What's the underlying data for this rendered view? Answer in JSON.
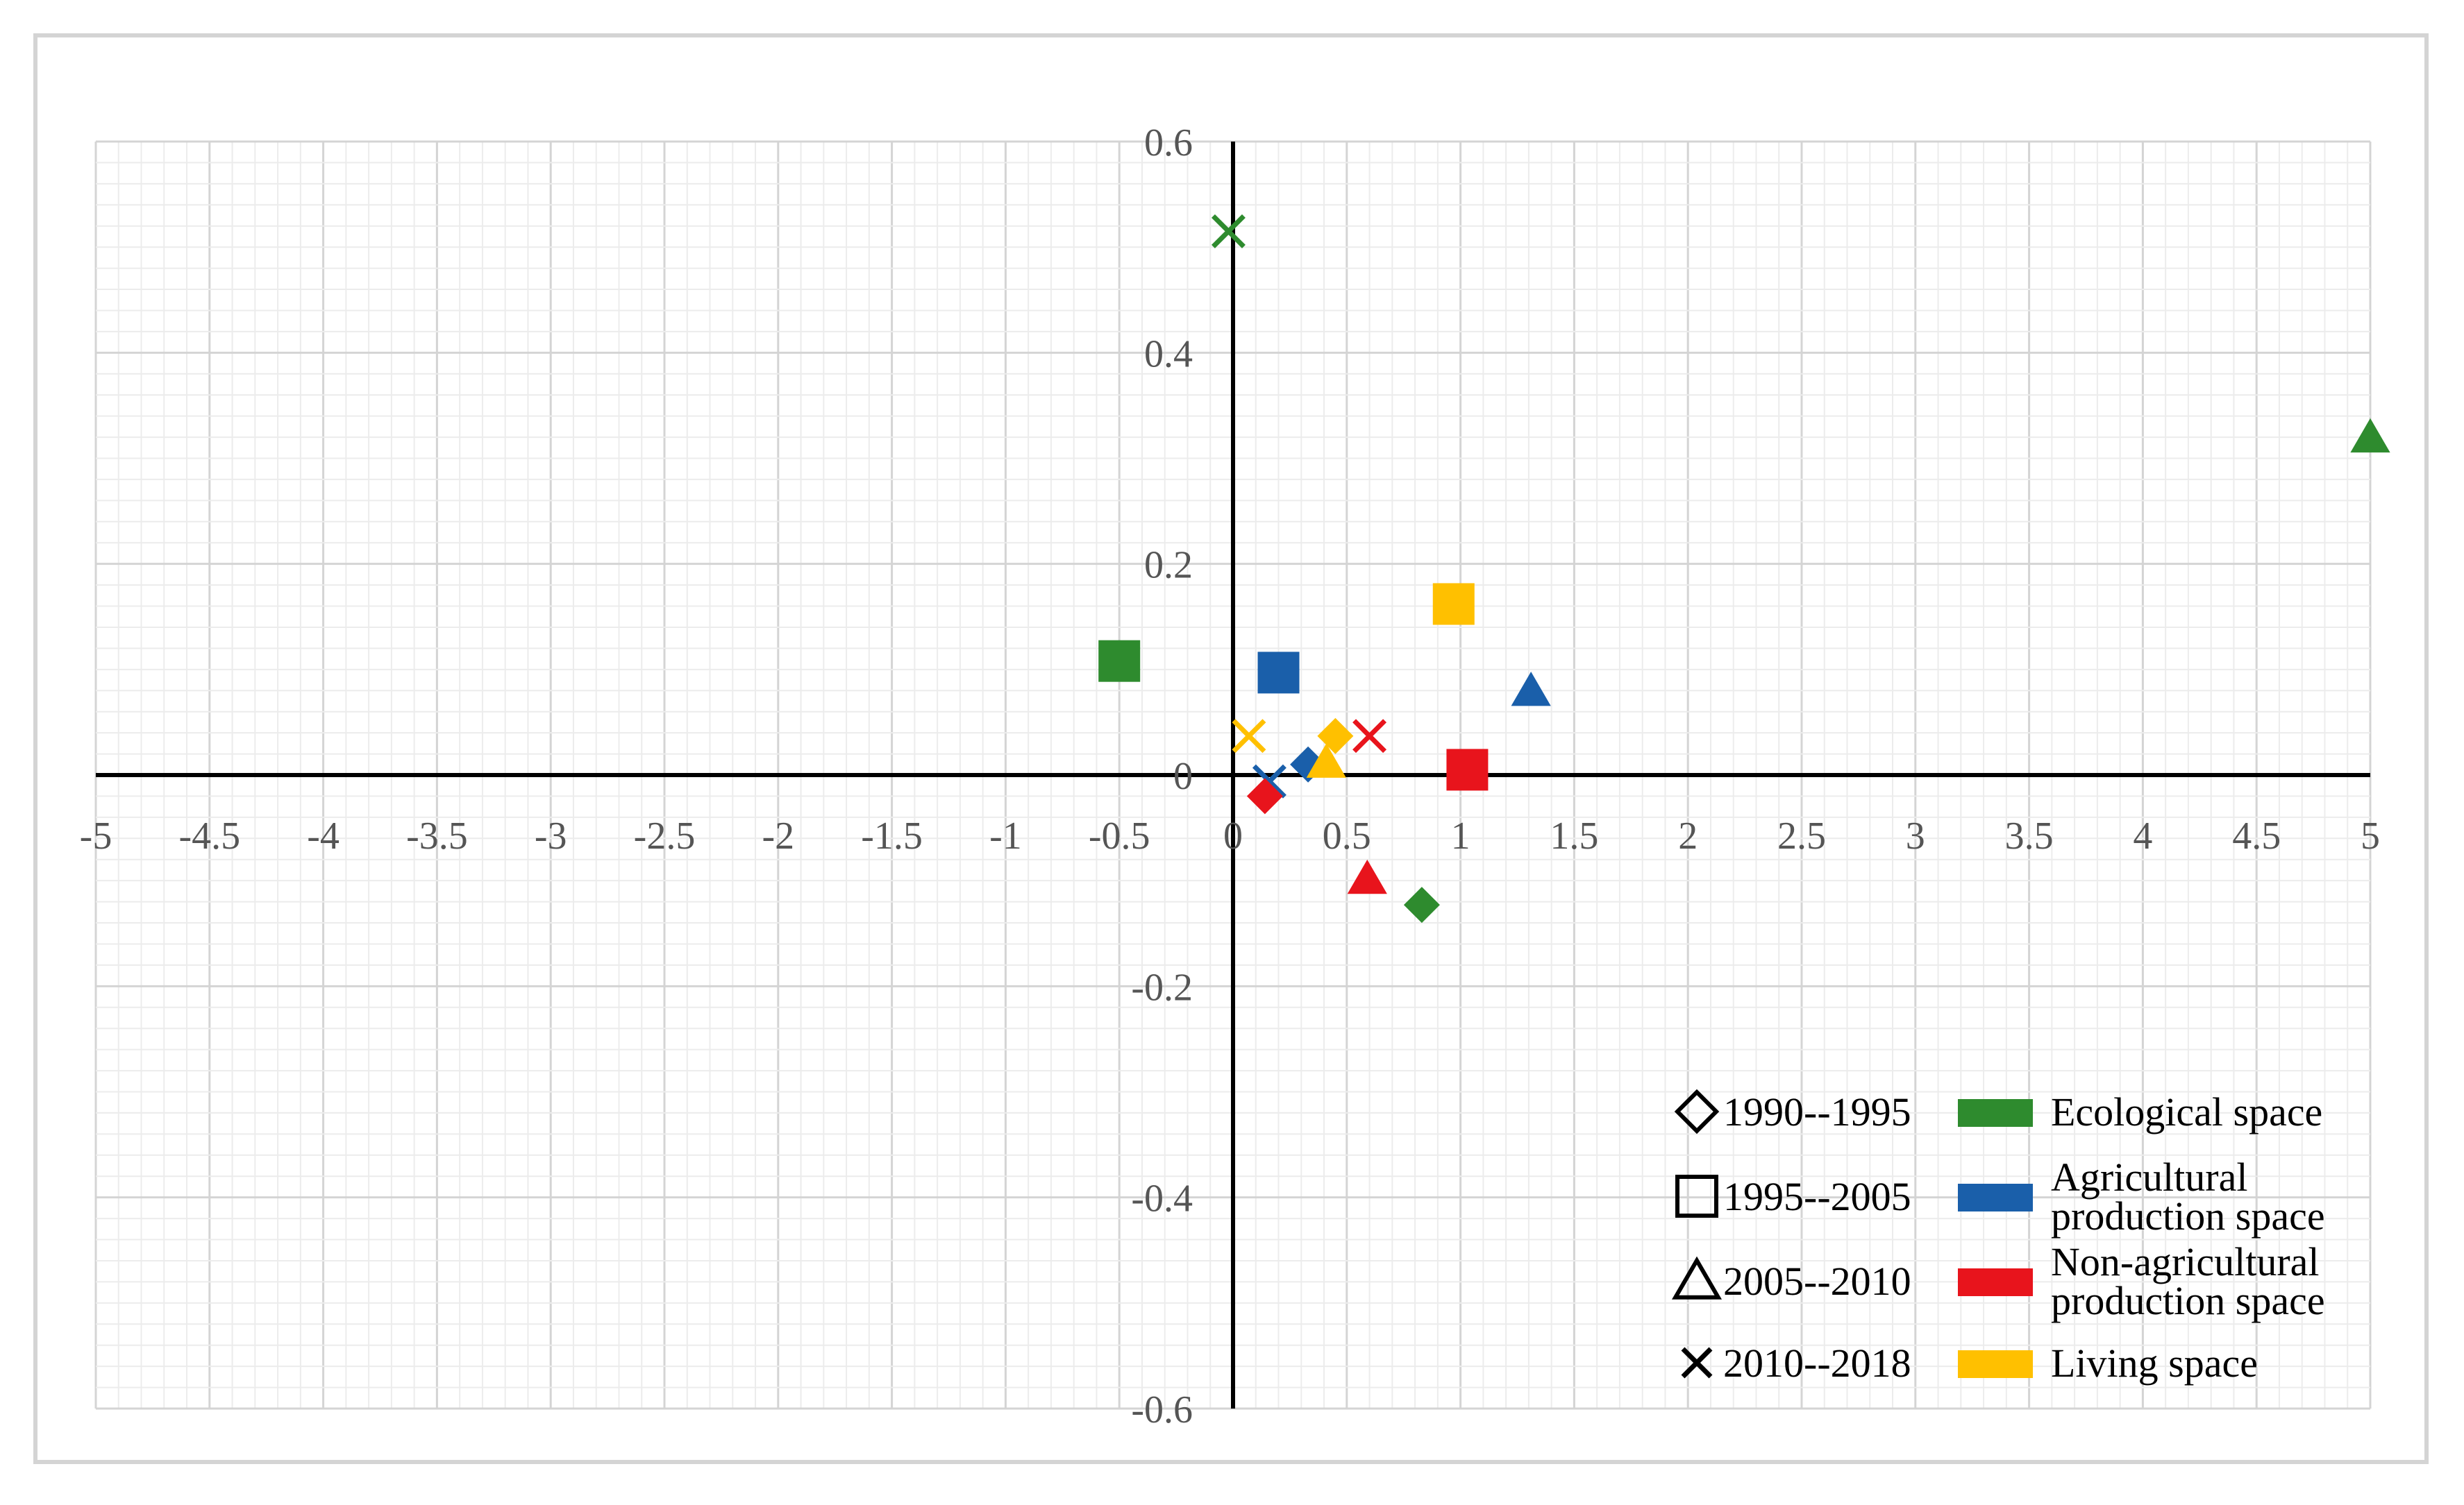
{
  "chart_data": {
    "type": "scatter",
    "title": "",
    "xlabel": "",
    "ylabel": "",
    "xlim": [
      -5,
      5
    ],
    "ylim": [
      -0.6,
      0.6
    ],
    "grid": true,
    "x_ticks": [
      "-5",
      "-4.5",
      "-4",
      "-3.5",
      "-3",
      "-2.5",
      "-2",
      "-1.5",
      "-1",
      "-0.5",
      "0",
      "0.5",
      "1",
      "1.5",
      "2",
      "2.5",
      "3",
      "3.5",
      "4",
      "4.5",
      "5"
    ],
    "y_ticks": [
      "0.6",
      "0.4",
      "0.2",
      "0",
      "-0.2",
      "-0.4",
      "-0.6"
    ],
    "periods": [
      {
        "label": "1990--1995",
        "marker": "diamond"
      },
      {
        "label": "1995--2005",
        "marker": "square"
      },
      {
        "label": "2005--2010",
        "marker": "triangle"
      },
      {
        "label": "2010--2018",
        "marker": "cross"
      }
    ],
    "spaces": [
      {
        "label": "Ecological space",
        "lines": [
          "Ecological space"
        ],
        "color": "#2e8b2e"
      },
      {
        "label": "Agricultural production space",
        "lines": [
          "Agricultural",
          "production space"
        ],
        "color": "#1a5faa"
      },
      {
        "label": "Non-agricultural production space",
        "lines": [
          "Non-agricultural",
          "production space"
        ],
        "color": "#e8141c"
      },
      {
        "label": "Living space",
        "lines": [
          "Living space"
        ],
        "color": "#ffc000"
      }
    ],
    "points": [
      {
        "space": "Ecological space",
        "period": "1990--1995",
        "x": 0.83,
        "y": -0.123
      },
      {
        "space": "Ecological space",
        "period": "1995--2005",
        "x": -0.5,
        "y": 0.108
      },
      {
        "space": "Ecological space",
        "period": "2005--2010",
        "x": 5.0,
        "y": 0.32
      },
      {
        "space": "Ecological space",
        "period": "2010--2018",
        "x": -0.02,
        "y": 0.515
      },
      {
        "space": "Agricultural production space",
        "period": "1990--1995",
        "x": 0.33,
        "y": 0.01
      },
      {
        "space": "Agricultural production space",
        "period": "1995--2005",
        "x": 0.2,
        "y": 0.097
      },
      {
        "space": "Agricultural production space",
        "period": "2005--2010",
        "x": 1.31,
        "y": 0.08
      },
      {
        "space": "Agricultural production space",
        "period": "2010--2018",
        "x": 0.16,
        "y": -0.006
      },
      {
        "space": "Non-agricultural production space",
        "period": "1990--1995",
        "x": 0.14,
        "y": -0.02
      },
      {
        "space": "Non-agricultural production space",
        "period": "1995--2005",
        "x": 1.03,
        "y": 0.005
      },
      {
        "space": "Non-agricultural production space",
        "period": "2005--2010",
        "x": 0.59,
        "y": -0.098
      },
      {
        "space": "Non-agricultural production space",
        "period": "2010--2018",
        "x": 0.6,
        "y": 0.037
      },
      {
        "space": "Living space",
        "period": "1990--1995",
        "x": 0.45,
        "y": 0.037
      },
      {
        "space": "Living space",
        "period": "1995--2005",
        "x": 0.97,
        "y": 0.162
      },
      {
        "space": "Living space",
        "period": "2005--2010",
        "x": 0.41,
        "y": 0.012
      },
      {
        "space": "Living space",
        "period": "2010--2018",
        "x": 0.07,
        "y": 0.037
      }
    ]
  }
}
